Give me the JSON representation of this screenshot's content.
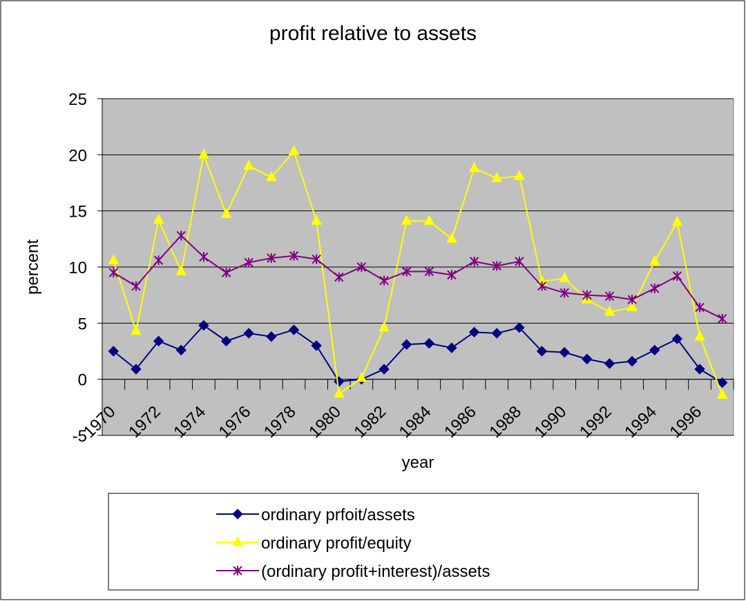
{
  "chart_data": {
    "type": "line",
    "title": "profit relative to assets",
    "xlabel": "year",
    "ylabel": "percent",
    "categories": [
      "1970",
      null,
      "1972",
      null,
      "1974",
      null,
      "1976",
      null,
      "1978",
      null,
      "1980",
      null,
      "1982",
      null,
      "1984",
      null,
      "1986",
      null,
      "1988",
      null,
      "1990",
      null,
      "1992",
      null,
      "1994",
      null,
      "1996",
      null
    ],
    "series": [
      {
        "name": "ordinary prfoit/assets",
        "color": "#000080",
        "marker": "diamond",
        "values": [
          2.5,
          0.9,
          3.4,
          2.6,
          4.8,
          3.4,
          4.1,
          3.8,
          4.4,
          3.0,
          -0.2,
          0.0,
          0.9,
          3.1,
          3.2,
          2.8,
          4.2,
          4.1,
          4.6,
          2.5,
          2.4,
          1.8,
          1.4,
          1.6,
          2.6,
          3.6,
          0.9,
          -0.3
        ]
      },
      {
        "name": "ordinary profit/equity",
        "color": "#ffff00",
        "marker": "triangle",
        "values": [
          10.6,
          4.3,
          14.2,
          9.6,
          20.0,
          14.7,
          19.0,
          18.0,
          20.3,
          14.1,
          -1.3,
          0.1,
          4.6,
          14.1,
          14.1,
          12.5,
          18.8,
          17.9,
          18.1,
          8.7,
          9.0,
          7.1,
          6.0,
          6.4,
          10.5,
          14.0,
          3.8,
          -1.4
        ]
      },
      {
        "name": "(ordinary profit+interest)/assets",
        "color": "#800080",
        "marker": "asterisk",
        "values": [
          9.5,
          8.3,
          10.6,
          12.8,
          10.9,
          9.5,
          10.4,
          10.8,
          11.0,
          10.7,
          9.1,
          10.0,
          8.8,
          9.6,
          9.6,
          9.3,
          10.5,
          10.1,
          10.5,
          8.3,
          7.7,
          7.5,
          7.4,
          7.1,
          8.1,
          9.2,
          6.4,
          5.4
        ]
      }
    ],
    "ylim": [
      -5,
      25
    ],
    "yticks": [
      -5,
      0,
      5,
      10,
      15,
      20,
      25
    ],
    "grid": true,
    "legend": "bottom"
  }
}
